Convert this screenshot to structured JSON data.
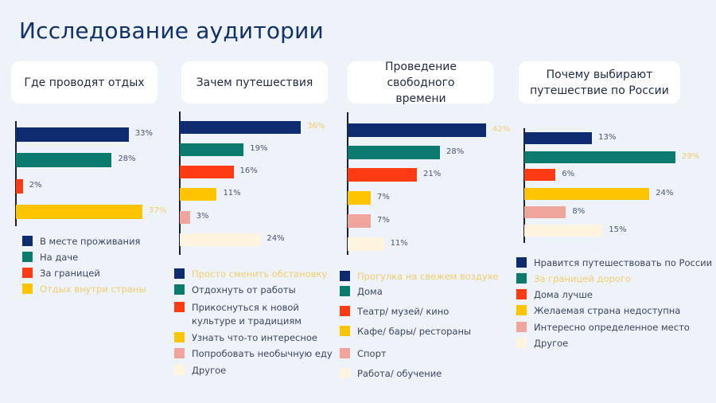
{
  "title": "Исследование аудитории",
  "colors": {
    "navy": "#0d2b6e",
    "teal": "#0c7a6c",
    "red": "#ff3b14",
    "yellow": "#ffc400",
    "pink": "#efa49c",
    "cream": "#fff4e0",
    "highlight_text": "#f2cd6b"
  },
  "chart_data": [
    {
      "type": "bar",
      "orientation": "horizontal",
      "title": "Где проводят отдых",
      "categories": [
        "В месте проживания",
        "На даче",
        "За границей",
        "Отдых внутри страны"
      ],
      "values": [
        33,
        28,
        2,
        37
      ],
      "labels": [
        "33%",
        "28%",
        "2%",
        "37%"
      ],
      "unit": "%",
      "xlim": [
        0,
        37
      ],
      "highlight_index": 3
    },
    {
      "type": "bar",
      "orientation": "horizontal",
      "title": "Зачем путешествия",
      "categories": [
        "Просто сменить обстановку",
        "Отдохнуть от работы",
        "Прикоснуться к новой культуре и традициям",
        "Узнать что-то интересное",
        "Попробовать необычную еду",
        "Другое"
      ],
      "values": [
        36,
        19,
        16,
        11,
        3,
        24
      ],
      "labels": [
        "36%",
        "19%",
        "16%",
        "11%",
        "3%",
        "24%"
      ],
      "unit": "%",
      "xlim": [
        0,
        36
      ],
      "highlight_index": 0
    },
    {
      "type": "bar",
      "orientation": "horizontal",
      "title": "Проведение свободного времени",
      "categories": [
        "Прогулка на свежем воздухе",
        "Дома",
        "Театр/ музей/ кино",
        "Кафе/ бары/ рестораны",
        "Спорт",
        "Работа/ обучение"
      ],
      "values": [
        42,
        28,
        21,
        7,
        7,
        11
      ],
      "labels": [
        "42%",
        "28%",
        "21%",
        "7%",
        "7%",
        "11%"
      ],
      "unit": "%",
      "xlim": [
        0,
        42
      ],
      "highlight_index": 0
    },
    {
      "type": "bar",
      "orientation": "horizontal",
      "title": "Почему выбирают путешествие по России",
      "categories": [
        "Нравится путешествовать по России",
        "За границей дорого",
        "Дома лучше",
        "Желаемая страна недоступна",
        "Интересно определенное место",
        "Другое"
      ],
      "values": [
        13,
        29,
        6,
        24,
        8,
        15
      ],
      "labels": [
        "13%",
        "29%",
        "6%",
        "24%",
        "8%",
        "15%"
      ],
      "unit": "%",
      "xlim": [
        0,
        29
      ],
      "highlight_index": 1
    }
  ]
}
